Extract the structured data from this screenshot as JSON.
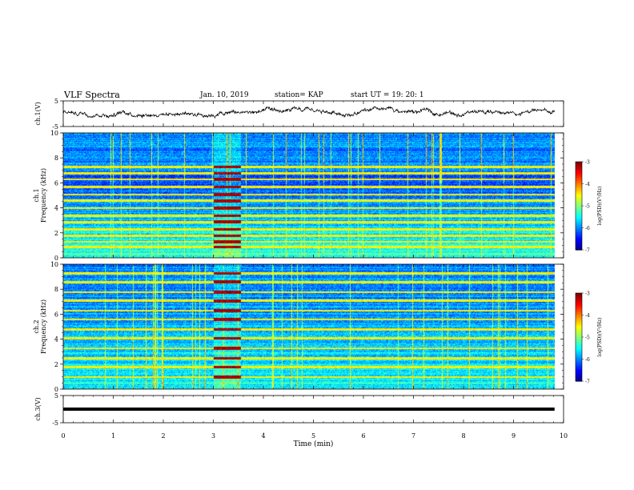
{
  "header": {
    "title": "VLF Spectra",
    "date": "Jan. 10, 2019",
    "station": "station= KAP",
    "start": "start  UT =   19: 20: 1"
  },
  "chart_data": [
    {
      "type": "line",
      "panel": "ch1-waveform",
      "ylabel": "ch.1(V)",
      "ylim": [
        -5,
        5
      ],
      "yticks": [
        "5",
        "-5"
      ],
      "xlim": [
        0,
        10
      ],
      "series": [
        {
          "description_level_mean_V": 0.5,
          "amplitude_V": 1.5
        }
      ]
    },
    {
      "type": "heatmap",
      "panel": "ch1-spectrogram",
      "ylabel": "Frequency (kHz)",
      "channel_label": "ch.1",
      "ylim": [
        0,
        10
      ],
      "yticks": [
        "0",
        "2",
        "4",
        "6",
        "8",
        "10"
      ],
      "xlim": [
        0,
        10
      ],
      "colorbar": {
        "label": "log(PSD)(V²/Hz)",
        "range": [
          -7,
          -3
        ],
        "ticks": [
          "-3",
          "-4",
          "-5",
          "-6",
          "-7"
        ]
      },
      "hum_lines_khz": [
        0.9,
        1.3,
        1.8,
        2.3,
        2.9,
        3.4,
        4.0,
        4.6,
        5.1,
        5.7,
        6.3,
        6.8,
        7.3
      ],
      "bright_block_min": [
        3.0,
        3.55
      ]
    },
    {
      "type": "heatmap",
      "panel": "ch2-spectrogram",
      "ylabel": "Frequency (kHz)",
      "channel_label": "ch.2",
      "ylim": [
        0,
        10
      ],
      "yticks": [
        "0",
        "2",
        "4",
        "6",
        "8",
        "10"
      ],
      "xlim": [
        0,
        10
      ],
      "colorbar": {
        "label": "log(PSD)(V²/Hz)",
        "range": [
          -7,
          -3
        ],
        "ticks": [
          "-3",
          "-4",
          "-5",
          "-6",
          "-7"
        ]
      },
      "hum_lines_khz": [
        1.0,
        1.8,
        2.5,
        3.3,
        4.1,
        4.8,
        5.6,
        6.3,
        7.1,
        7.8,
        8.6,
        9.3
      ],
      "bright_block_min": [
        3.0,
        3.55
      ]
    },
    {
      "type": "line",
      "panel": "ch3-waveform",
      "ylabel": "ch.3(V)",
      "ylim": [
        -5,
        5
      ],
      "yticks": [
        "5",
        "-5"
      ],
      "xlim": [
        0,
        10
      ],
      "series": [
        {
          "constant_V": 0
        }
      ]
    }
  ],
  "xaxis": {
    "label": "Time (min)",
    "ticks": [
      "0",
      "1",
      "2",
      "3",
      "4",
      "5",
      "6",
      "7",
      "8",
      "9",
      "10"
    ],
    "data_end_min": 9.82
  }
}
